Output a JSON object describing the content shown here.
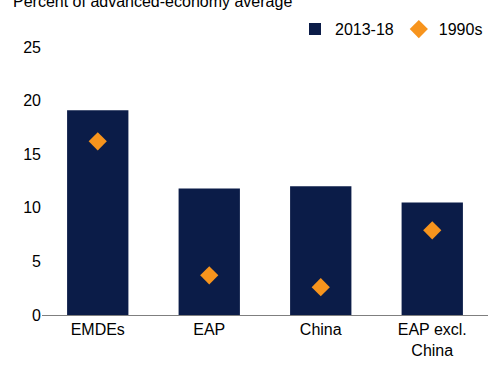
{
  "chart_data": {
    "type": "bar",
    "y_label": "Percent of advanced-economy average",
    "categories": [
      "EMDEs",
      "EAP",
      "China",
      "EAP excl. China"
    ],
    "series": [
      {
        "name": "2013-18",
        "type": "bar",
        "color": "#0b1c48",
        "values": [
          19.1,
          11.8,
          12.0,
          10.5
        ]
      },
      {
        "name": "1990s",
        "type": "scatter",
        "marker": "diamond",
        "color": "#f7941d",
        "values": [
          16.2,
          3.7,
          2.6,
          7.9
        ]
      }
    ],
    "ylim": [
      0,
      25
    ],
    "yticks": [
      0,
      5,
      10,
      15,
      20,
      25
    ],
    "grid": false,
    "legend": "top right"
  }
}
